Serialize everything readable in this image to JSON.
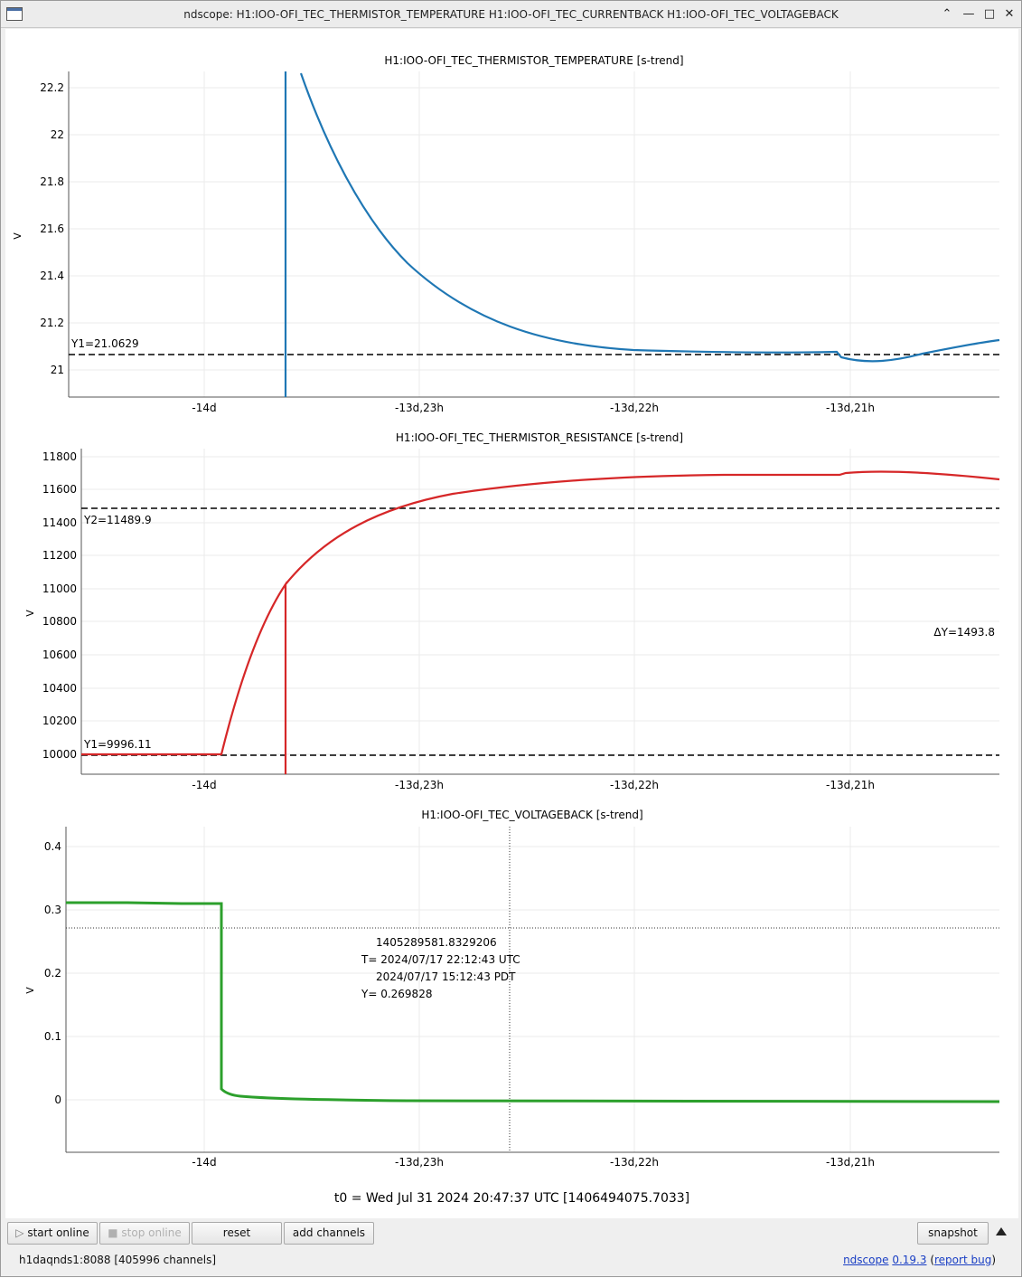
{
  "window": {
    "title": "ndscope: H1:IOO-OFI_TEC_THERMISTOR_TEMPERATURE H1:IOO-OFI_TEC_CURRENTBACK H1:IOO-OFI_TEC_VOLTAGEBACK",
    "controls": [
      "minimize-icon",
      "maximize-icon",
      "close-icon"
    ]
  },
  "plots": [
    {
      "title": "H1:IOO-OFI_TEC_THERMISTOR_TEMPERATURE [s-trend]",
      "ylabel": "V",
      "yticks": [
        "22.2",
        "22",
        "21.8",
        "21.6",
        "21.4",
        "21.2",
        "21"
      ],
      "xticks": [
        "-14d",
        "-13d,23h",
        "-13d,22h",
        "-13d,21h"
      ],
      "cursor_labels": [
        "Y1=21.0629"
      ],
      "color": "#1f77b4"
    },
    {
      "title": "H1:IOO-OFI_TEC_THERMISTOR_RESISTANCE [s-trend]",
      "ylabel": "V",
      "yticks": [
        "11800",
        "11600",
        "11400",
        "11200",
        "11000",
        "10800",
        "10600",
        "10400",
        "10200",
        "10000"
      ],
      "xticks": [
        "-14d",
        "-13d,23h",
        "-13d,22h",
        "-13d,21h"
      ],
      "cursor_labels": [
        "Y2=11489.9",
        "Y1=9996.11",
        "ΔY=1493.8"
      ],
      "color": "#d62728"
    },
    {
      "title": "H1:IOO-OFI_TEC_VOLTAGEBACK [s-trend]",
      "ylabel": "V",
      "yticks": [
        "0.4",
        "0.3",
        "0.2",
        "0.1",
        "0"
      ],
      "xticks": [
        "-14d",
        "-13d,23h",
        "-13d,22h",
        "-13d,21h"
      ],
      "crosshair": {
        "gps": "1405289581.8329206",
        "utc": "T= 2024/07/17 22:12:43 UTC",
        "pdt": "2024/07/17 15:12:43 PDT",
        "y": "Y= 0.269828"
      },
      "color": "#2ca02c"
    }
  ],
  "t0_label": "t0 = Wed Jul 31 2024 20:47:37 UTC [1406494075.7033]",
  "toolbar": {
    "start_online": "start online",
    "stop_online": "stop online",
    "reset": "reset",
    "add_channels": "add channels",
    "snapshot": "snapshot"
  },
  "status": {
    "server": "h1daqnds1:8088  [405996 channels]",
    "app_name": "ndscope",
    "version": "0.19.3",
    "report_bug": "report bug"
  }
}
